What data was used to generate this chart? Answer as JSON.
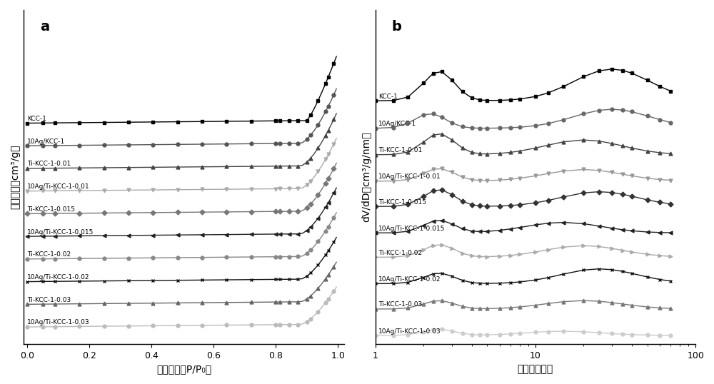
{
  "series_labels": [
    "KCC-1",
    "10Ag/KCC-1",
    "Ti-KCC-1-0.01",
    "10Ag/Ti-KCC-1-0.01",
    "Ti-KCC-1-0.015",
    "10Ag/Ti-KCC-1-0.015",
    "Ti-KCC-1-0.02",
    "10Ag/Ti-KCC-1-0.02",
    "Ti-KCC-1-0.03",
    "10Ag/Ti-KCC-1-0.03"
  ],
  "colors_a": [
    "#000000",
    "#555555",
    "#444444",
    "#aaaaaa",
    "#777777",
    "#222222",
    "#888888",
    "#111111",
    "#666666",
    "#bbbbbb"
  ],
  "colors_b": [
    "#000000",
    "#666666",
    "#444444",
    "#999999",
    "#333333",
    "#222222",
    "#aaaaaa",
    "#111111",
    "#777777",
    "#cccccc"
  ],
  "markers_a": [
    "s",
    "o",
    "^",
    "v",
    "D",
    "<",
    "o",
    "x",
    "^",
    "o"
  ],
  "markers_b": [
    "s",
    "o",
    "^",
    "v",
    "D",
    "<",
    ">",
    "x",
    "^",
    "o"
  ],
  "xlabel_a": "相对压力（P/P₀）",
  "ylabel_a": "吸附容量（cm³/g）",
  "xlabel_b": "孔径（纳米）",
  "ylabel_b": "dV/dD（cm³/g/nm）",
  "label_a": "a",
  "label_b": "b",
  "bg_color": "#ffffff"
}
